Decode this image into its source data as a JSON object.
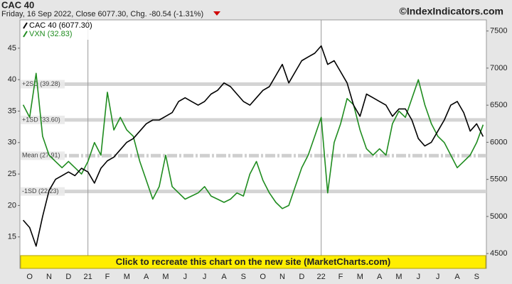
{
  "chart_data": {
    "type": "line",
    "title": "CAC 40",
    "subtitle": "Friday, 16 Sep 2022, Close 6077.30, Chg. -80.54 (-1.31%)",
    "source": "©IndexIndicators.com",
    "banner": "Click to recreate this chart on the new site (MarketCharts.com)",
    "categories": [
      null,
      "O",
      null,
      null,
      "N",
      null,
      null,
      "D",
      null,
      null,
      "21",
      null,
      null,
      "F",
      null,
      null,
      "M",
      null,
      null,
      "A",
      null,
      null,
      "M",
      null,
      null,
      "J",
      null,
      null,
      "J",
      null,
      null,
      "A",
      null,
      null,
      "S",
      null,
      null,
      "O",
      null,
      null,
      "N",
      null,
      null,
      "D",
      null,
      null,
      "22",
      null,
      null,
      "F",
      null,
      null,
      "M",
      null,
      null,
      "A",
      null,
      null,
      "M",
      null,
      null,
      "J",
      null,
      null,
      "J",
      null,
      null,
      "A",
      null,
      null,
      "S",
      null
    ],
    "series": [
      {
        "name": "CAC 40 (6077.30)",
        "color": "#000000",
        "axis": "y2",
        "values": [
          4950,
          4850,
          4600,
          5000,
          5350,
          5500,
          5550,
          5600,
          5550,
          5650,
          5600,
          5450,
          5650,
          5750,
          5800,
          5900,
          6000,
          6050,
          6150,
          6250,
          6300,
          6300,
          6350,
          6400,
          6550,
          6600,
          6550,
          6500,
          6550,
          6650,
          6700,
          6800,
          6750,
          6650,
          6550,
          6500,
          6600,
          6700,
          6750,
          6900,
          7050,
          6800,
          6950,
          7100,
          7150,
          7200,
          7300,
          7050,
          7100,
          6950,
          6800,
          6500,
          6350,
          6650,
          6600,
          6550,
          6500,
          6350,
          6450,
          6450,
          6300,
          6050,
          5950,
          6000,
          6150,
          6300,
          6500,
          6550,
          6400,
          6150,
          6250,
          6077.3
        ]
      },
      {
        "name": "VXN (32.83)",
        "color": "#1f8c1f",
        "values": [
          36,
          34,
          41,
          31,
          28,
          27,
          26,
          27,
          26,
          25,
          27,
          30,
          28,
          38,
          32,
          34,
          32,
          31,
          27,
          24,
          21,
          23,
          28,
          23,
          22,
          21,
          21.5,
          22,
          23,
          21.5,
          21,
          20.5,
          21,
          22,
          21.5,
          25,
          27,
          24,
          22,
          20.5,
          19.5,
          20,
          23,
          26,
          28,
          31,
          34,
          22,
          30,
          33,
          37,
          36,
          32,
          29,
          28,
          29,
          28,
          33,
          35,
          34,
          37,
          40,
          36,
          33,
          31,
          30,
          28,
          26,
          27,
          28,
          30,
          32.83
        ]
      }
    ],
    "bands": [
      {
        "value": 39.28,
        "label": "+2SD (39.28)"
      },
      {
        "value": 33.6,
        "label": "+1SD (33.60)"
      },
      {
        "value": 27.91,
        "label": "Mean (27.91)"
      },
      {
        "value": 22.23,
        "label": "-1SD (22.23)"
      }
    ],
    "ylim": [
      10,
      49.5
    ],
    "yticks": [
      15,
      20,
      25,
      30,
      35,
      40,
      45
    ],
    "y2lim": [
      4300,
      7650
    ],
    "y2ticks": [
      4500,
      5000,
      5500,
      6000,
      6500,
      7000,
      7500
    ]
  }
}
